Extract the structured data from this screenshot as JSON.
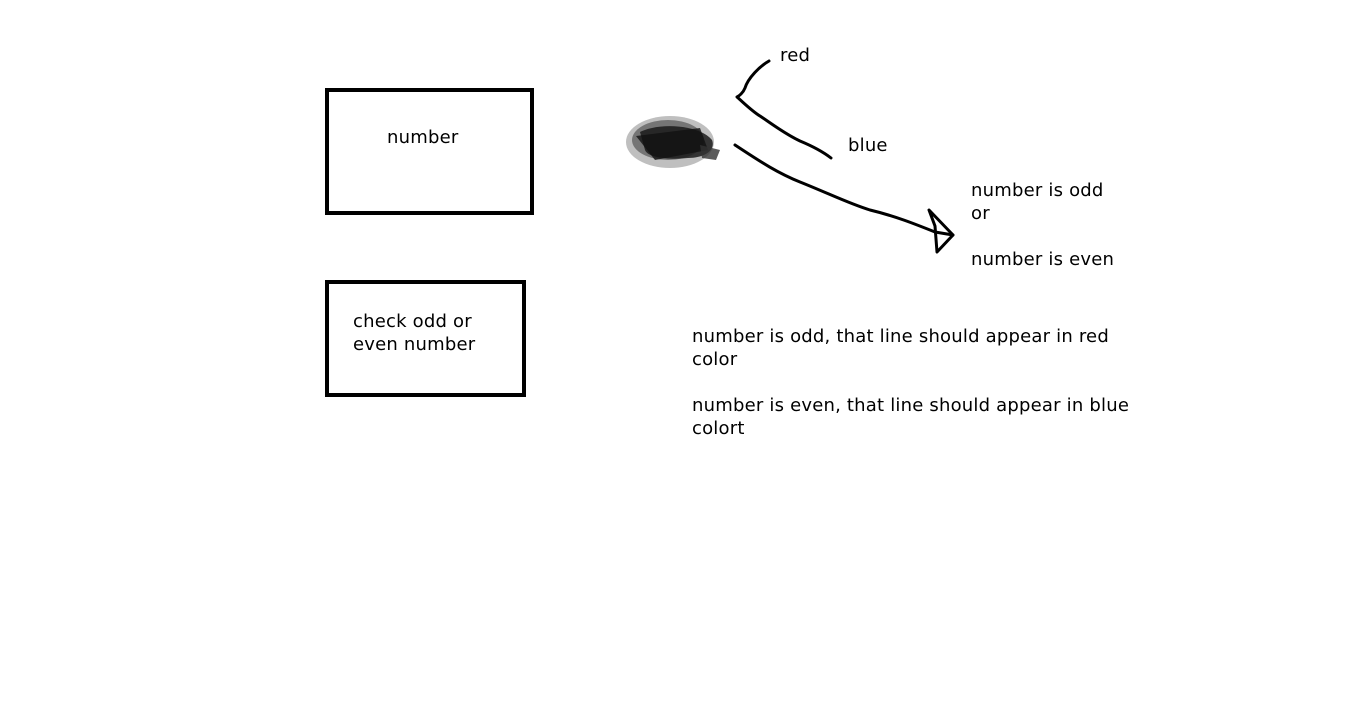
{
  "diagram": {
    "boxes": {
      "number": {
        "label": "number"
      },
      "check": {
        "label_lines": [
          "check odd or",
          "even number"
        ]
      }
    },
    "branch_labels": {
      "red": "red",
      "blue": "blue"
    },
    "result": {
      "lines": [
        "number is odd",
        "or",
        "",
        "number is even"
      ]
    },
    "notes": {
      "odd_lines": [
        "number is odd, that line should appear in red",
        "color"
      ],
      "even_lines": [
        "number is even, that line should appear in blue",
        "colort"
      ]
    },
    "colors": {
      "ink": "#000000",
      "scribble": "#3a3a3a",
      "background": "#ffffff"
    }
  }
}
